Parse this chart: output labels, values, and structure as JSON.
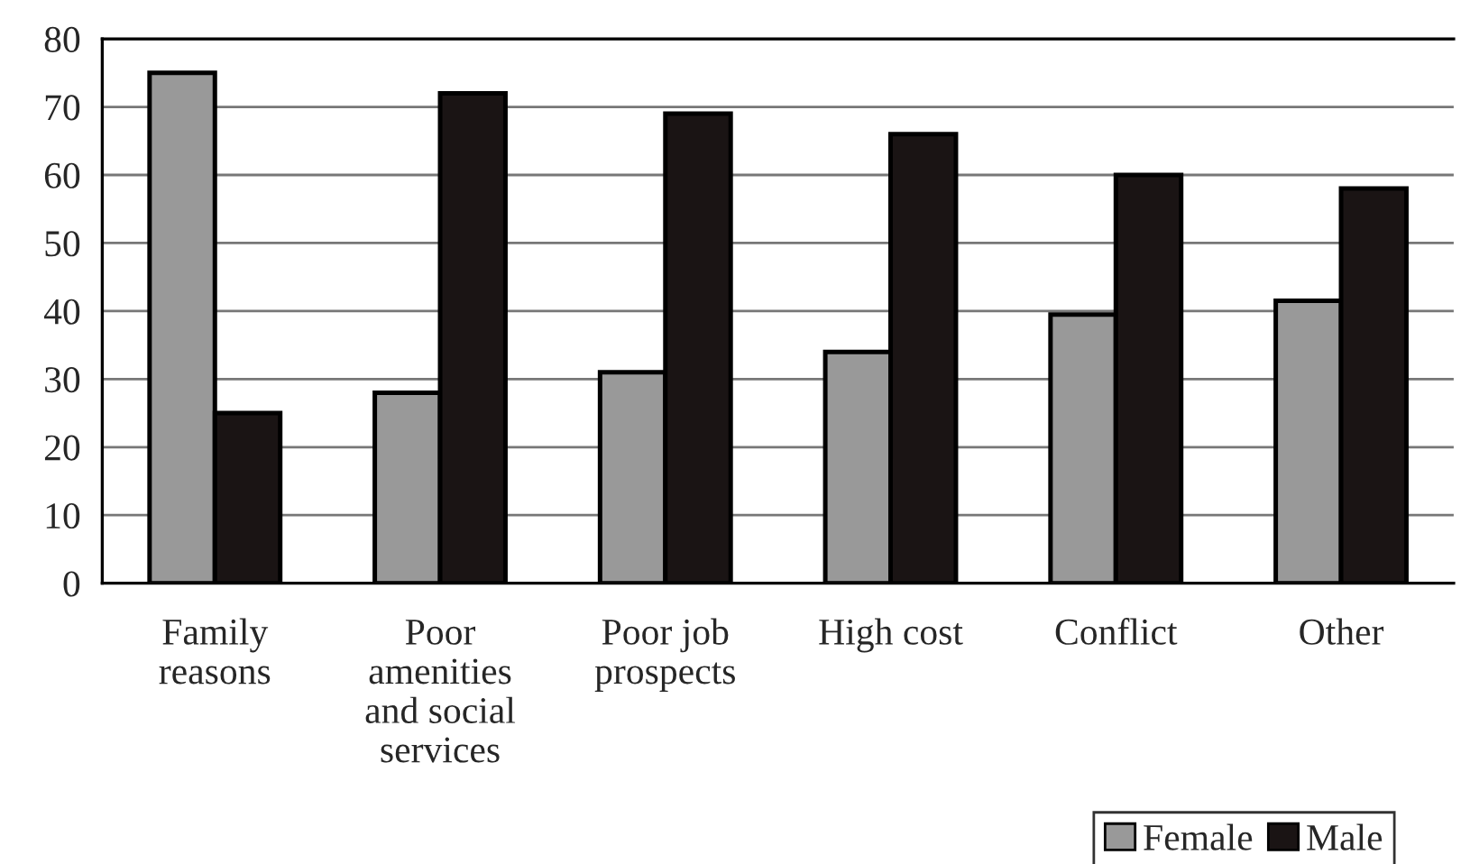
{
  "chart_data": {
    "type": "bar",
    "categories": [
      "Family\nreasons",
      "Poor\namenities\nand social\nservices",
      "Poor job\nprospects",
      "High cost",
      "Conflict",
      "Other"
    ],
    "series": [
      {
        "name": "Female",
        "color": "#999999",
        "values": [
          75,
          28,
          31,
          34,
          39.5,
          41.5
        ]
      },
      {
        "name": "Male",
        "color": "#1a1414",
        "values": [
          25,
          72,
          69,
          66,
          60,
          58
        ]
      }
    ],
    "ylim": [
      0,
      80
    ],
    "yticks": [
      0,
      10,
      20,
      30,
      40,
      50,
      60,
      70,
      80
    ],
    "grid": "y",
    "legend": "bottom right"
  }
}
